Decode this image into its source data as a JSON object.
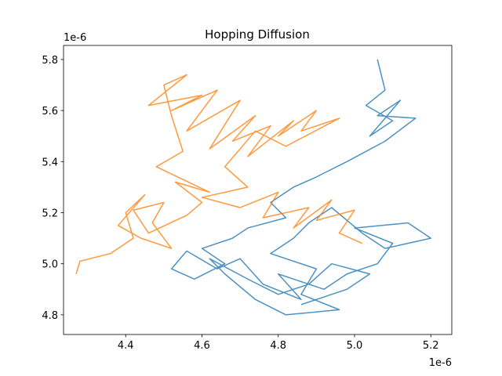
{
  "chart_data": {
    "type": "line",
    "title": "Hopping Diffusion",
    "x_offset_text": "1e-6",
    "y_offset_text": "1e-6",
    "xlim": [
      4.237,
      5.255
    ],
    "ylim": [
      4.723,
      5.855
    ],
    "xticks": [
      4.4,
      4.6,
      4.8,
      {
        "value": 5,
        "label": "5.0"
      },
      5.2
    ],
    "yticks": [
      4.8,
      {
        "value": 5,
        "label": "5.0"
      },
      5.2,
      5.4,
      5.6,
      5.8
    ],
    "grid": false,
    "series": [
      {
        "color": "#1f77b4",
        "x": [
          5.06,
          5.08,
          5.03,
          5.1,
          5.04,
          5.12,
          5.06,
          5.16,
          5.08,
          4.98,
          4.9,
          4.84,
          4.78,
          4.82,
          4.72,
          4.68,
          4.6,
          4.66,
          4.58,
          4.52,
          4.56,
          4.64,
          4.7,
          4.76,
          4.86,
          4.8,
          4.92,
          4.98,
          5.06,
          5.1,
          5.0,
          5.14,
          5.2,
          5.08,
          5.02,
          4.94,
          4.88,
          4.84,
          4.78,
          4.9,
          4.86,
          4.96,
          4.82,
          4.74,
          4.66,
          4.62,
          4.72,
          4.8,
          4.88,
          4.94,
          5.04,
          4.98,
          4.86
        ],
        "values": [
          5.8,
          5.68,
          5.62,
          5.56,
          5.5,
          5.64,
          5.58,
          5.57,
          5.48,
          5.4,
          5.34,
          5.3,
          5.24,
          5.18,
          5.14,
          5.1,
          5.06,
          5.0,
          4.94,
          4.98,
          5.05,
          4.98,
          5.02,
          4.92,
          4.86,
          4.96,
          4.9,
          4.96,
          5.0,
          5.08,
          5.14,
          5.16,
          5.1,
          5.06,
          5.12,
          5.22,
          5.16,
          5.1,
          5.04,
          4.98,
          4.88,
          4.82,
          4.8,
          4.86,
          4.96,
          5.02,
          4.94,
          4.88,
          4.92,
          5.0,
          4.96,
          4.9,
          4.84
        ]
      },
      {
        "color": "#ff7f0e",
        "x": [
          4.27,
          4.28,
          4.36,
          4.42,
          4.4,
          4.45,
          4.38,
          4.44,
          4.52,
          4.47,
          4.5,
          4.42,
          4.46,
          4.56,
          4.6,
          4.53,
          4.62,
          4.48,
          4.55,
          4.52,
          4.5,
          4.56,
          4.46,
          4.6,
          4.52,
          4.64,
          4.56,
          4.7,
          4.62,
          4.74,
          4.68,
          4.78,
          4.72,
          4.84,
          4.8,
          4.9,
          4.86,
          4.96,
          4.82,
          4.74,
          4.66,
          4.72,
          4.6,
          4.7,
          4.8,
          4.76,
          4.88,
          4.84,
          4.94,
          4.9,
          5.0,
          4.96,
          5.02
        ],
        "values": [
          4.96,
          5.01,
          5.04,
          5.1,
          5.2,
          5.27,
          5.15,
          5.1,
          5.06,
          5.16,
          5.24,
          5.21,
          5.12,
          5.19,
          5.24,
          5.32,
          5.28,
          5.38,
          5.44,
          5.58,
          5.7,
          5.74,
          5.62,
          5.66,
          5.6,
          5.68,
          5.52,
          5.64,
          5.45,
          5.58,
          5.48,
          5.54,
          5.42,
          5.56,
          5.5,
          5.6,
          5.52,
          5.57,
          5.46,
          5.52,
          5.38,
          5.3,
          5.26,
          5.22,
          5.28,
          5.18,
          5.22,
          5.14,
          5.25,
          5.17,
          5.21,
          5.12,
          5.08
        ]
      }
    ]
  }
}
